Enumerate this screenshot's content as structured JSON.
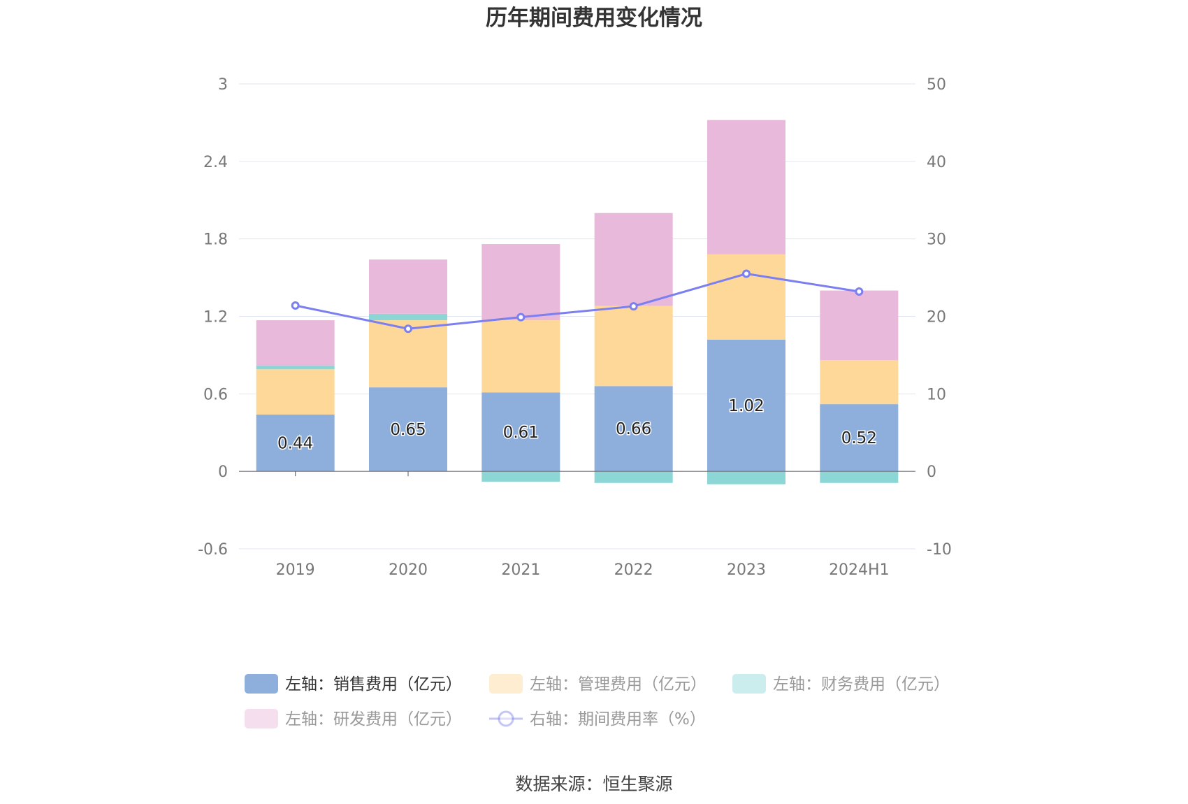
{
  "chart_data": {
    "type": "bar",
    "title": "历年期间费用变化情况",
    "categories": [
      "2019",
      "2020",
      "2021",
      "2022",
      "2023",
      "2024H1"
    ],
    "series": [
      {
        "name": "左轴：销售费用（亿元）",
        "type": "bar",
        "axis": "left",
        "color": "#8eaedb",
        "values": [
          0.44,
          0.65,
          0.61,
          0.66,
          1.02,
          0.52
        ],
        "labels": [
          "0.44",
          "0.65",
          "0.61",
          "0.66",
          "1.02",
          "0.52"
        ]
      },
      {
        "name": "左轴：管理费用（亿元）",
        "type": "bar",
        "axis": "left",
        "color": "#fed899",
        "values": [
          0.35,
          0.52,
          0.56,
          0.62,
          0.66,
          0.34
        ]
      },
      {
        "name": "左轴：财务费用（亿元）",
        "type": "bar",
        "axis": "left",
        "color": "#8cd6d6",
        "values": [
          0.03,
          0.05,
          -0.08,
          -0.09,
          -0.1,
          -0.09
        ]
      },
      {
        "name": "左轴：研发费用（亿元）",
        "type": "bar",
        "axis": "left",
        "color": "#e8b9da",
        "values": [
          0.35,
          0.42,
          0.59,
          0.72,
          1.04,
          0.54
        ]
      },
      {
        "name": "右轴：期间费用率（%）",
        "type": "line",
        "axis": "right",
        "color": "#7b7fef",
        "values": [
          21.4,
          18.4,
          19.9,
          21.3,
          25.5,
          23.2
        ]
      }
    ],
    "y_left": {
      "ticks": [
        "3",
        "2.4",
        "1.8",
        "1.2",
        "0.6",
        "0",
        "-0.6"
      ],
      "ylim": [
        -0.6,
        3
      ]
    },
    "y_right": {
      "ticks": [
        "50",
        "40",
        "30",
        "20",
        "10",
        "0",
        "-10"
      ],
      "ylim": [
        -10,
        50
      ]
    },
    "grid": true,
    "legend_position": "bottom",
    "legend_inactive": [
      false,
      true,
      true,
      true,
      true
    ]
  },
  "source": "数据来源：恒生聚源"
}
